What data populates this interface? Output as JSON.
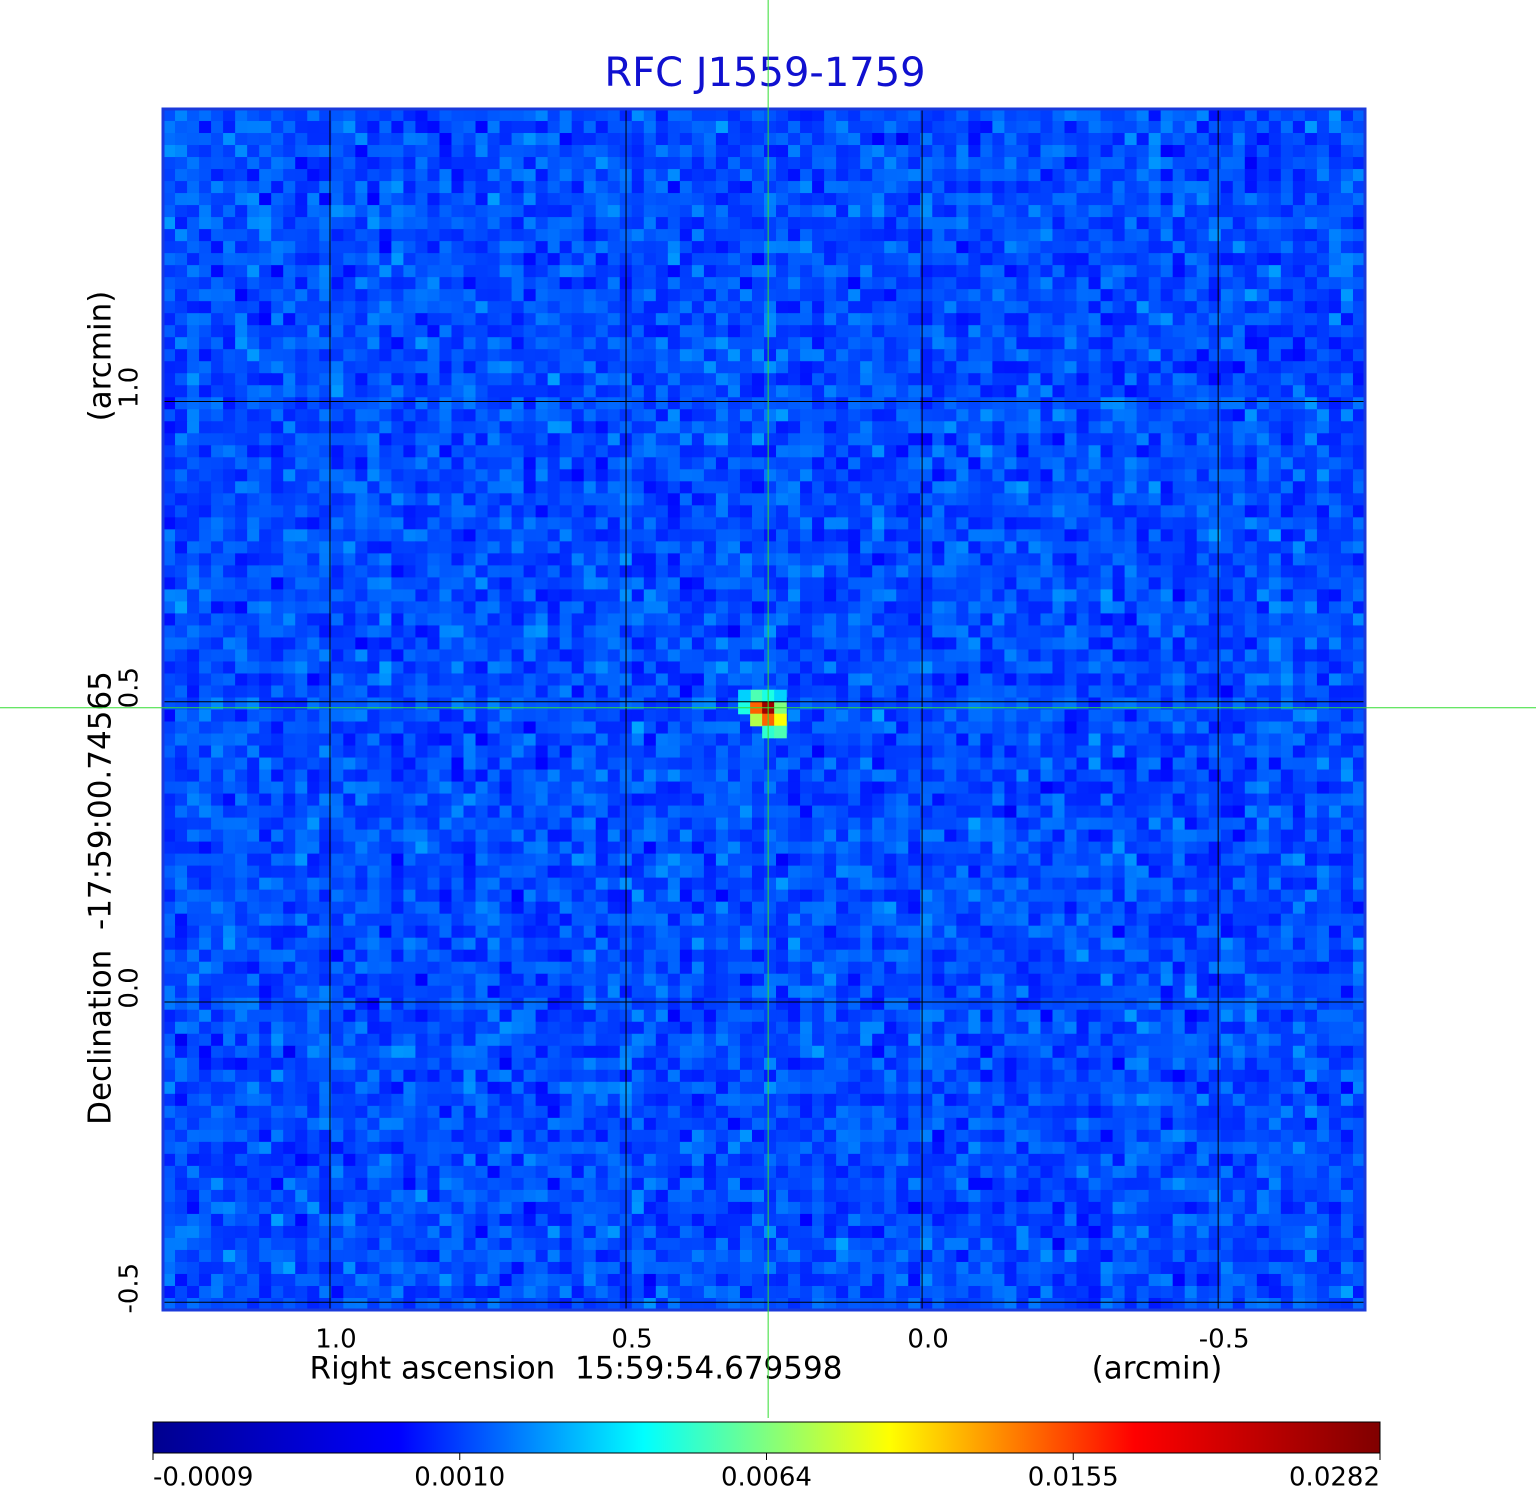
{
  "chart_data": {
    "type": "image",
    "title": "RFC J1559-1759",
    "x_label": "Right ascension  15:59:54.679598",
    "x_unit": "(arcmin)",
    "y_label": "Declination  -17:59:00.74565",
    "y_unit": "(arcmin)",
    "xlim": [
      1.282,
      -0.748
    ],
    "ylim": [
      -0.513,
      1.487
    ],
    "xticks": [
      {
        "value": 1,
        "label": "1.0"
      },
      0.5,
      {
        "value": 0,
        "label": "0.0"
      },
      -0.5
    ],
    "yticks": [
      -0.5,
      {
        "value": 0,
        "label": "0.0"
      },
      0.5,
      {
        "value": 1,
        "label": "1.0"
      }
    ],
    "grid": true,
    "source": {
      "x": 0.26,
      "y": 0.49
    },
    "colormap": [
      "#00008f",
      "#0000ff",
      "#00ffff",
      "#ffff00",
      "#ff0000",
      "#800000"
    ],
    "colorbar_ticks": [
      -0.0009,
      {
        "value": 0.001,
        "label": "0.0010"
      },
      0.0064,
      0.0155,
      0.0282
    ]
  }
}
